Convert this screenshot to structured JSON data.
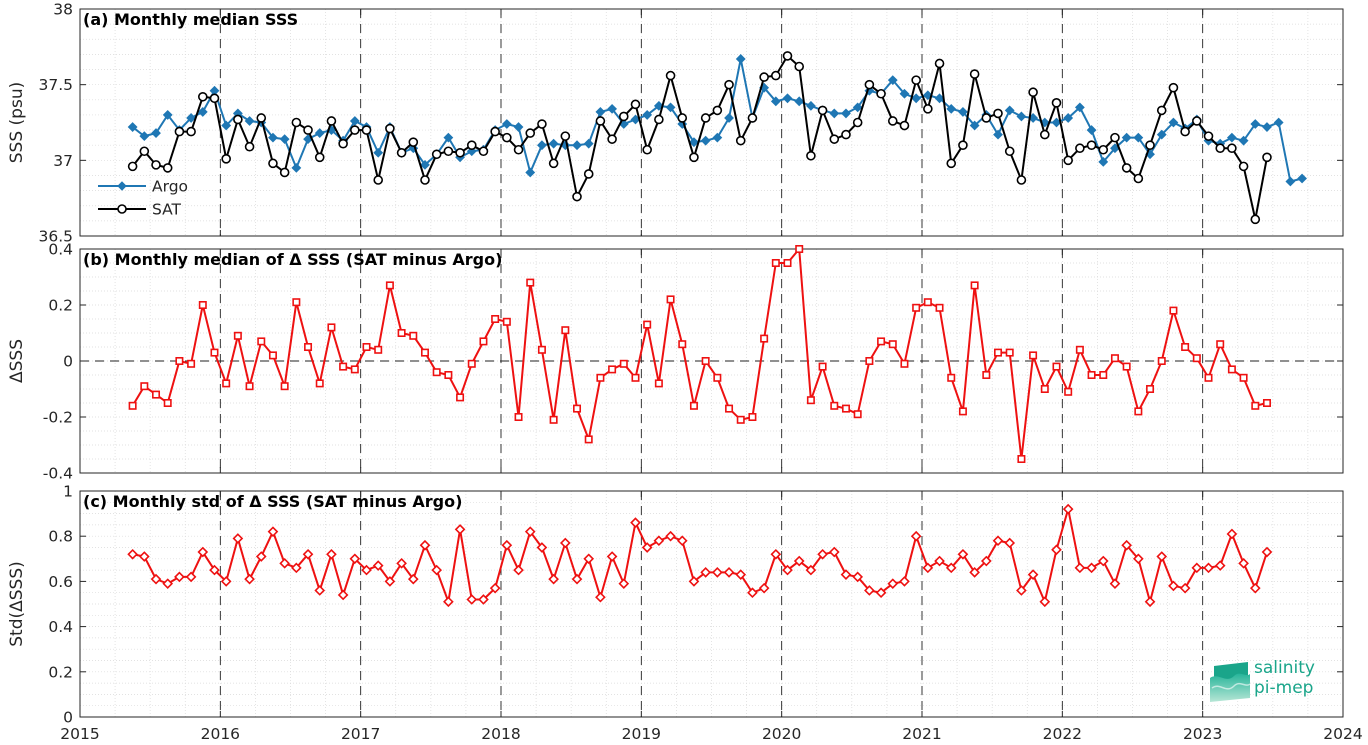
{
  "chart_data": [
    {
      "type": "line",
      "title": "(a) Monthly median SSS",
      "ylabel": "SSS (psu)",
      "xlim": [
        2015,
        2024
      ],
      "ylim": [
        36.5,
        38
      ],
      "yticks": [
        "36.5",
        "37",
        "37.5",
        "38"
      ],
      "grid": true,
      "legend": "bottom-left",
      "x_start": "2015-05",
      "series": [
        {
          "name": "Argo",
          "color": "#1f77b4",
          "marker": "diamond",
          "values": [
            37.22,
            37.16,
            37.18,
            37.3,
            37.2,
            37.28,
            37.32,
            37.46,
            37.23,
            37.31,
            37.26,
            37.25,
            37.15,
            37.14,
            36.95,
            37.14,
            37.18,
            37.2,
            37.13,
            37.26,
            37.22,
            37.05,
            37.22,
            37.05,
            37.08,
            36.97,
            37.04,
            37.15,
            37.02,
            37.06,
            37.07,
            37.2,
            37.24,
            37.22,
            36.92,
            37.1,
            37.11,
            37.1,
            37.1,
            37.11,
            37.32,
            37.34,
            37.24,
            37.27,
            37.3,
            37.36,
            37.35,
            37.24,
            37.12,
            37.13,
            37.15,
            37.28,
            37.67,
            37.28,
            37.48,
            37.39,
            37.41,
            37.39,
            37.36,
            37.33,
            37.31,
            37.31,
            37.35,
            37.46,
            37.44,
            37.53,
            37.44,
            37.41,
            37.43,
            37.41,
            37.34,
            37.32,
            37.23,
            37.3,
            37.17,
            37.33,
            37.29,
            37.28,
            37.25,
            37.25,
            37.28,
            37.35,
            37.2,
            36.99,
            37.08,
            37.15,
            37.15,
            37.04,
            37.17,
            37.25,
            37.21,
            37.27,
            37.13,
            37.11,
            37.15,
            37.13,
            37.24,
            37.22,
            37.25,
            36.86,
            36.88
          ]
        },
        {
          "name": "SAT",
          "color": "#000000",
          "marker": "circle",
          "values": [
            36.96,
            37.06,
            36.97,
            36.95,
            37.19,
            37.19,
            37.42,
            37.41,
            37.01,
            37.27,
            37.09,
            37.28,
            36.98,
            36.92,
            37.25,
            37.2,
            37.02,
            37.26,
            37.11,
            37.2,
            37.2,
            36.87,
            37.21,
            37.05,
            37.12,
            36.87,
            37.04,
            37.06,
            37.05,
            37.1,
            37.06,
            37.19,
            37.15,
            37.07,
            37.18,
            37.24,
            36.98,
            37.16,
            36.76,
            36.91,
            37.26,
            37.14,
            37.29,
            37.37,
            37.07,
            37.27,
            37.56,
            37.28,
            37.02,
            37.28,
            37.33,
            37.5,
            37.13,
            37.28,
            37.55,
            37.56,
            37.69,
            37.62,
            37.03,
            37.33,
            37.14,
            37.17,
            37.25,
            37.5,
            37.44,
            37.26,
            37.23,
            37.53,
            37.34,
            37.64,
            36.98,
            37.1,
            37.57,
            37.28,
            37.31,
            37.06,
            36.87,
            37.45,
            37.17,
            37.38,
            37.0,
            37.08,
            37.1,
            37.07,
            37.15,
            36.95,
            36.88,
            37.1,
            37.33,
            37.48,
            37.19,
            37.26,
            37.16,
            37.08,
            37.08,
            36.96,
            36.61,
            37.02
          ]
        }
      ]
    },
    {
      "type": "line",
      "title": "(b) Monthly median of Δ SSS (SAT minus Argo)",
      "ylabel": "ΔSSS",
      "xlim": [
        2015,
        2024
      ],
      "ylim": [
        -0.4,
        0.4
      ],
      "yticks": [
        "-0.4",
        "-0.2",
        "0",
        "0.2",
        "0.4"
      ],
      "grid": true,
      "x_start": "2015-05",
      "series": [
        {
          "color": "#ee1111",
          "marker": "square",
          "values": [
            -0.16,
            -0.09,
            -0.12,
            -0.15,
            0.0,
            -0.01,
            0.2,
            0.03,
            -0.08,
            0.09,
            -0.09,
            0.07,
            0.02,
            -0.09,
            0.21,
            0.05,
            -0.08,
            0.12,
            -0.02,
            -0.03,
            0.05,
            0.04,
            0.27,
            0.1,
            0.09,
            0.03,
            -0.04,
            -0.05,
            -0.13,
            -0.01,
            0.07,
            0.15,
            0.14,
            -0.2,
            0.28,
            0.04,
            -0.21,
            0.11,
            -0.17,
            -0.28,
            -0.06,
            -0.03,
            -0.01,
            -0.06,
            0.13,
            -0.08,
            0.22,
            0.06,
            -0.16,
            0.0,
            -0.06,
            -0.17,
            -0.21,
            -0.2,
            0.08,
            0.35,
            0.35,
            0.4,
            -0.14,
            -0.02,
            -0.16,
            -0.17,
            -0.19,
            0.0,
            0.07,
            0.06,
            -0.01,
            0.19,
            0.21,
            0.19,
            -0.06,
            -0.18,
            0.27,
            -0.05,
            0.03,
            0.03,
            -0.35,
            0.02,
            -0.1,
            -0.02,
            -0.11,
            0.04,
            -0.05,
            -0.05,
            0.01,
            -0.02,
            -0.18,
            -0.1,
            0.0,
            0.18,
            0.05,
            0.01,
            -0.06,
            0.06,
            -0.03,
            -0.06,
            -0.16,
            -0.15
          ]
        }
      ]
    },
    {
      "type": "line",
      "title": "(c) Monthly std of Δ SSS (SAT minus Argo)",
      "ylabel": "Std(ΔSSS)",
      "xlim": [
        2015,
        2024
      ],
      "ylim": [
        0,
        1
      ],
      "yticks": [
        "0",
        "0.2",
        "0.4",
        "0.6",
        "0.8",
        "1"
      ],
      "xticks": [
        "2015",
        "2016",
        "2017",
        "2018",
        "2019",
        "2020",
        "2021",
        "2022",
        "2023",
        "2024"
      ],
      "grid": true,
      "x_start": "2015-05",
      "series": [
        {
          "color": "#ee1111",
          "marker": "diamond",
          "values": [
            0.72,
            0.71,
            0.61,
            0.59,
            0.62,
            0.62,
            0.73,
            0.65,
            0.6,
            0.79,
            0.61,
            0.71,
            0.82,
            0.68,
            0.66,
            0.72,
            0.56,
            0.72,
            0.54,
            0.7,
            0.65,
            0.67,
            0.6,
            0.68,
            0.61,
            0.76,
            0.65,
            0.51,
            0.83,
            0.52,
            0.52,
            0.57,
            0.76,
            0.65,
            0.82,
            0.75,
            0.61,
            0.77,
            0.61,
            0.7,
            0.53,
            0.71,
            0.59,
            0.86,
            0.75,
            0.78,
            0.8,
            0.78,
            0.6,
            0.64,
            0.64,
            0.64,
            0.63,
            0.55,
            0.57,
            0.72,
            0.65,
            0.69,
            0.65,
            0.72,
            0.73,
            0.63,
            0.62,
            0.56,
            0.55,
            0.59,
            0.6,
            0.8,
            0.66,
            0.69,
            0.66,
            0.72,
            0.64,
            0.69,
            0.78,
            0.77,
            0.56,
            0.63,
            0.51,
            0.74,
            0.92,
            0.66,
            0.66,
            0.69,
            0.59,
            0.76,
            0.7,
            0.51,
            0.71,
            0.58,
            0.57,
            0.66,
            0.66,
            0.67,
            0.81,
            0.68,
            0.57,
            0.73
          ]
        }
      ]
    }
  ],
  "logo": {
    "line1": "salinity",
    "line2": "pi-mep"
  }
}
